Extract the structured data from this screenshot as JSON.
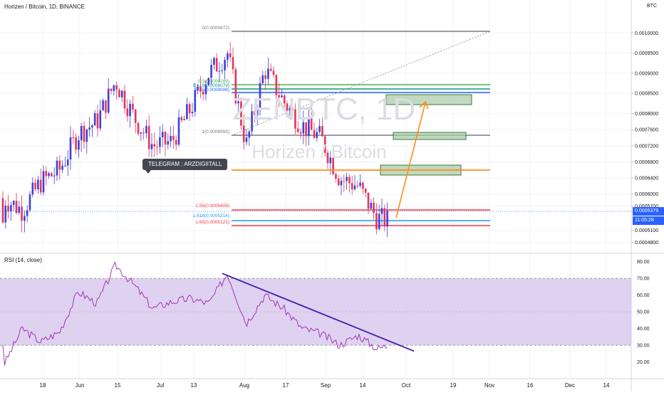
{
  "header": {
    "symbol_line": "Horizen / Bitcoin, 1D, BINANCE"
  },
  "quote_currency": "BTC",
  "rsi_label": "RSI (14, close)",
  "telegram_label": "TELEGRAM : ARZDIGIITALL",
  "watermark": {
    "ticker": "ZENBTC, 1D",
    "name": "Horizen / Bitcoin"
  },
  "price_axis": {
    "ticks": [
      "0.0010000",
      "0.0009500",
      "0.0009000",
      "0.0008500",
      "0.0008000",
      "0.0007600",
      "0.0007200",
      "0.0006800",
      "0.0006400",
      "0.0006000",
      "0.0005700",
      "0.0005100",
      "0.0004800"
    ],
    "last_price": "0.0005379",
    "countdown": "11:05:28"
  },
  "rsi_axis": {
    "ticks": [
      "80.00",
      "70.00",
      "60.00",
      "50.00",
      "40.00",
      "30.00",
      "20.00"
    ]
  },
  "time_axis": {
    "labels": [
      "18",
      "Jun",
      "15",
      "Jul",
      "13",
      "Aug",
      "17",
      "Sep",
      "14",
      "Oct",
      "19",
      "Nov",
      "16",
      "Dec",
      "14"
    ]
  },
  "fib_levels": [
    {
      "label": "0(0.0009872)",
      "color": "#787b86"
    },
    {
      "label": "0.5(0.0008289)",
      "color": "#4caf50"
    },
    {
      "label": "0.618(0.0008079)",
      "color": "#089981"
    },
    {
      "label": "0.65(0.0008006)",
      "color": "#2962ff"
    },
    {
      "label": "1(0.0006993)",
      "color": "#787b86"
    },
    {
      "label": "1.55(0.0005409)",
      "color": "#f23645"
    },
    {
      "label": "1.618(0.0005214)",
      "color": "#2196f3"
    },
    {
      "label": "1.65(0.0005121)",
      "color": "#f23645"
    }
  ],
  "colors": {
    "up": "#3f3fd8",
    "down": "#e8335a",
    "orange": "#ff8c1a",
    "rsi_line": "#9c27b0",
    "rsi_band": "#d7c6ec",
    "trend": "#3a1ea8",
    "box_fill": "#a5c9a5",
    "box_stroke": "#3c7a3c"
  },
  "chart_data": {
    "type": "candlestick",
    "price_series": {
      "name": "Horizen / Bitcoin",
      "y_range": [
        0.00046,
        0.00105
      ],
      "x": [
        "May 1",
        "May 8",
        "May 15",
        "May 22",
        "May 29",
        "Jun 5",
        "Jun 12",
        "Jun 19",
        "Jun 26",
        "Jul 3",
        "Jul 10",
        "Jul 17",
        "Jul 24",
        "Jul 31",
        "Aug 7",
        "Aug 14",
        "Aug 21",
        "Aug 28",
        "Sep 4",
        "Sep 11",
        "Sep 18",
        "Sep 25"
      ],
      "close": [
        0.00059,
        0.00056,
        0.00063,
        0.00066,
        0.00075,
        0.00078,
        0.00088,
        0.00079,
        0.00072,
        0.00073,
        0.00081,
        0.0009,
        0.00095,
        0.00072,
        0.00091,
        0.00083,
        0.00077,
        0.00074,
        0.00064,
        0.00062,
        0.00054,
        0.00053
      ]
    },
    "rsi_series": {
      "name": "RSI (14, close)",
      "y_range": [
        10,
        85
      ],
      "x": [
        "May 1",
        "May 8",
        "May 15",
        "May 22",
        "May 29",
        "Jun 5",
        "Jun 12",
        "Jun 19",
        "Jun 26",
        "Jul 3",
        "Jul 10",
        "Jul 17",
        "Jul 24",
        "Jul 31",
        "Aug 7",
        "Aug 14",
        "Aug 21",
        "Aug 28",
        "Sep 4",
        "Sep 11",
        "Sep 18",
        "Sep 25"
      ],
      "values": [
        18,
        40,
        32,
        38,
        62,
        55,
        78,
        66,
        52,
        56,
        58,
        55,
        73,
        43,
        60,
        52,
        40,
        37,
        30,
        36,
        28,
        31
      ],
      "overbought": 70,
      "oversold": 30
    }
  }
}
